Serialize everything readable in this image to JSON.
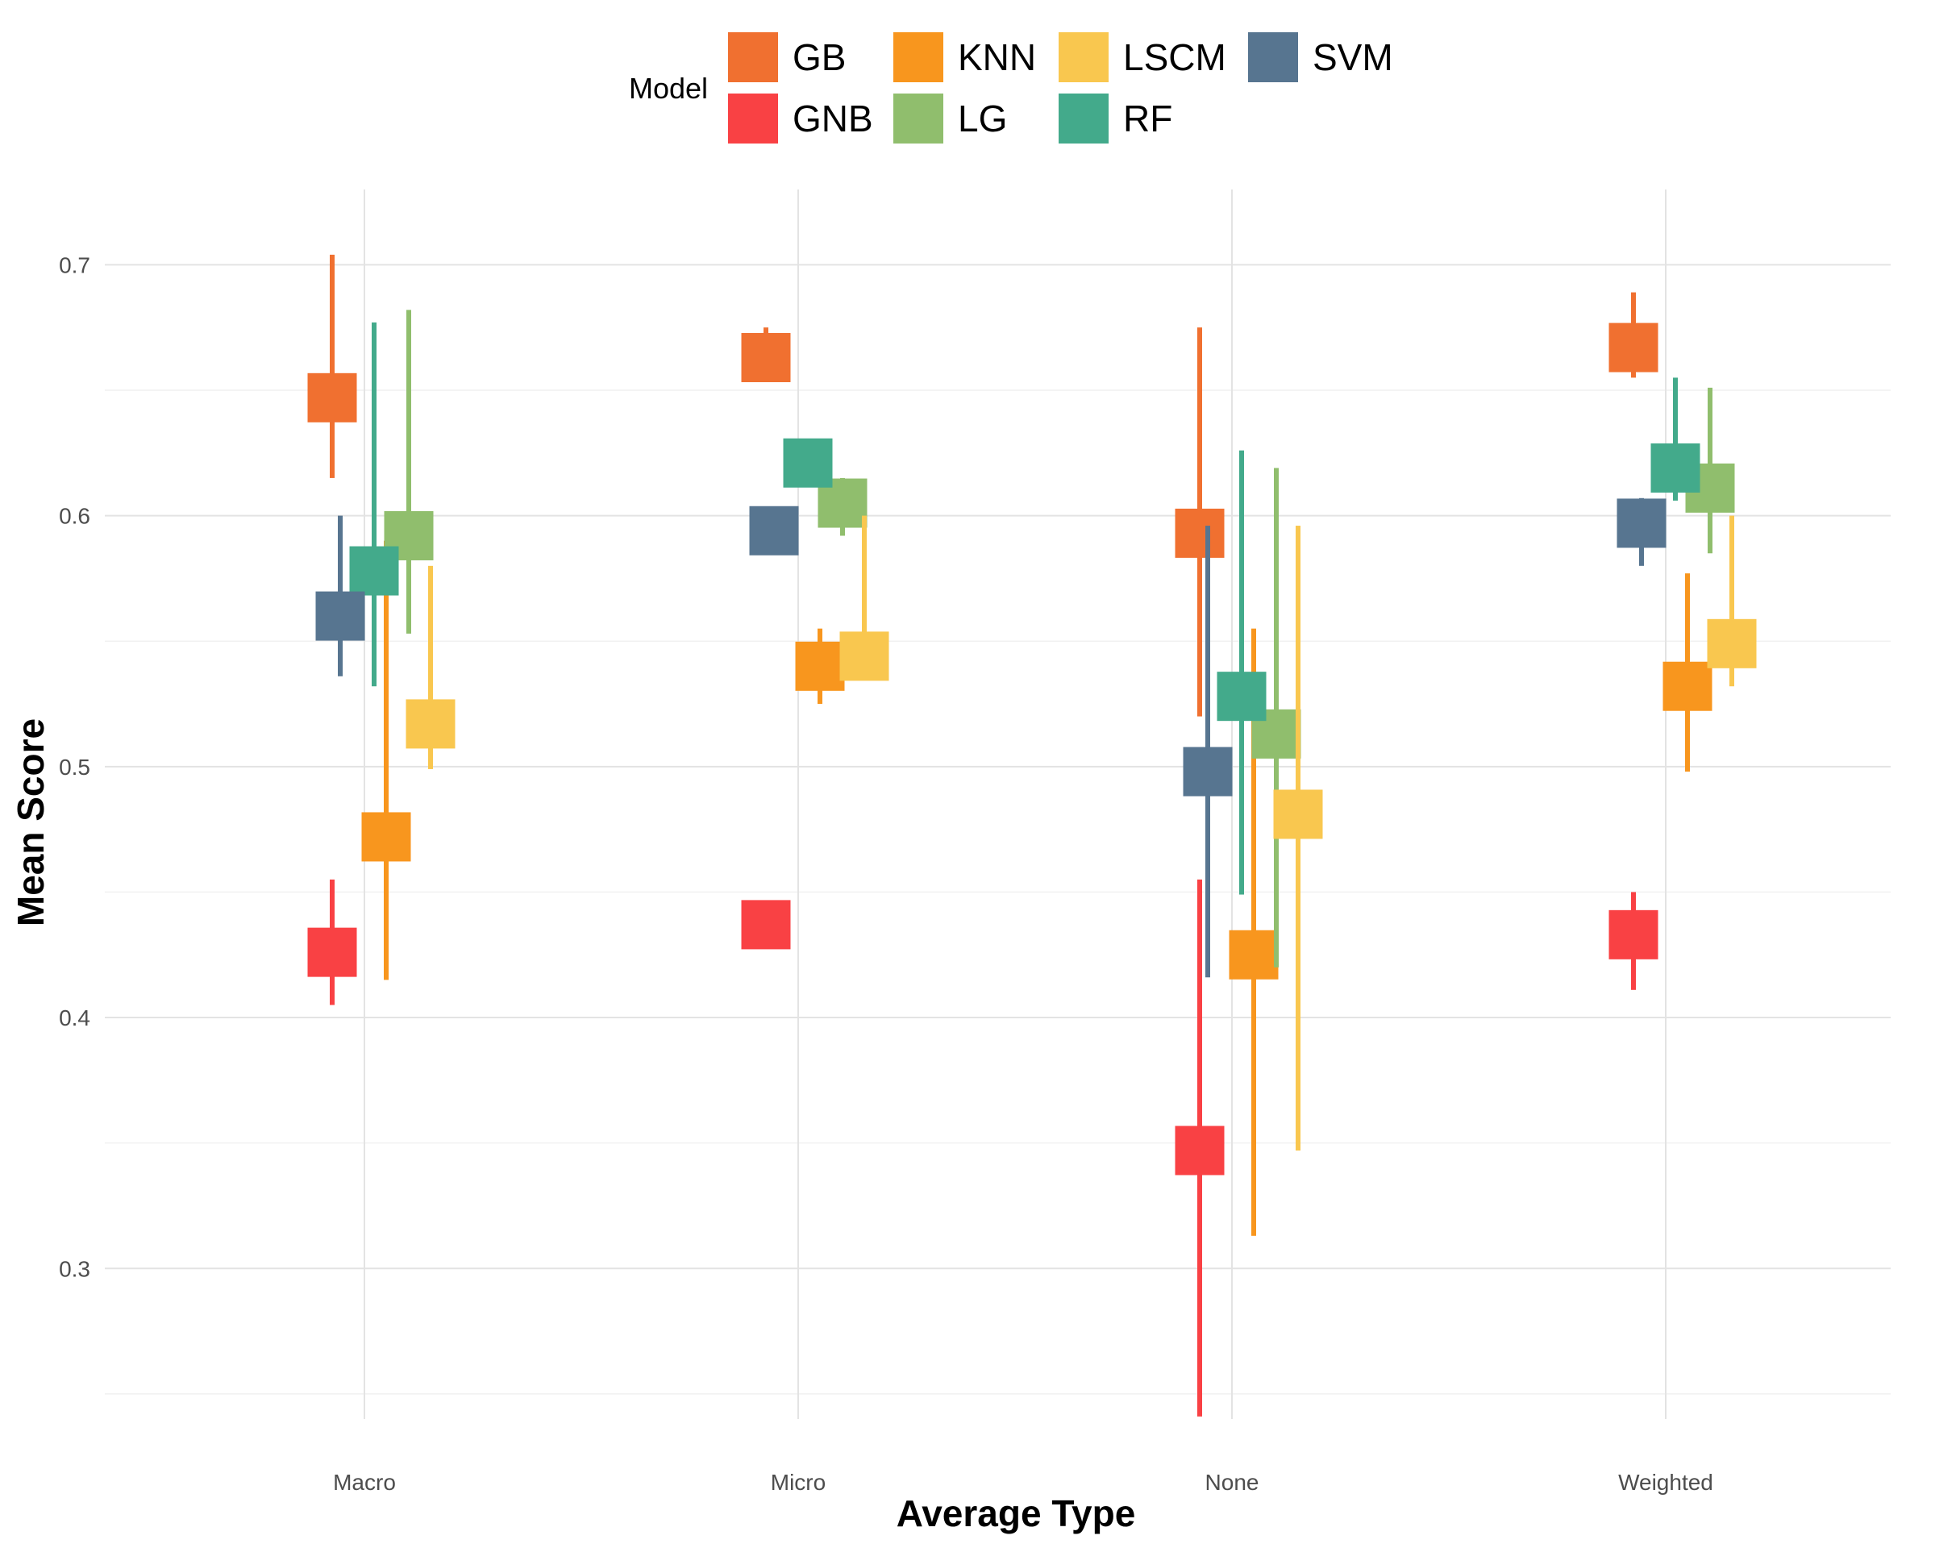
{
  "chart_data": {
    "type": "errorbar",
    "xlabel": "Average Type",
    "ylabel": "Mean Score",
    "legend_title": "Model",
    "legend_position": "top",
    "grid": true,
    "ylim": [
      0.24,
      0.73
    ],
    "yticks": [
      "0.3",
      "0.4",
      "0.5",
      "0.6",
      "0.7"
    ],
    "categories": [
      "Macro",
      "Micro",
      "None",
      "Weighted"
    ],
    "series": [
      {
        "name": "GB",
        "color": "#F07030",
        "mean": [
          0.647,
          0.663,
          0.593,
          0.667
        ],
        "lower": [
          0.615,
          0.66,
          0.52,
          0.655
        ],
        "upper": [
          0.704,
          0.675,
          0.675,
          0.689
        ]
      },
      {
        "name": "GNB",
        "color": "#F94144",
        "mean": [
          0.426,
          0.437,
          0.347,
          0.433
        ],
        "lower": [
          0.405,
          0.437,
          0.241,
          0.411
        ],
        "upper": [
          0.455,
          0.437,
          0.455,
          0.45
        ]
      },
      {
        "name": "KNN",
        "color": "#F8961E",
        "mean": [
          0.472,
          0.54,
          0.425,
          0.532
        ],
        "lower": [
          0.415,
          0.525,
          0.313,
          0.498
        ],
        "upper": [
          0.59,
          0.555,
          0.555,
          0.577
        ]
      },
      {
        "name": "LG",
        "color": "#90BE6D",
        "mean": [
          0.592,
          0.605,
          0.513,
          0.611
        ],
        "lower": [
          0.553,
          0.592,
          0.42,
          0.585
        ],
        "upper": [
          0.682,
          0.615,
          0.619,
          0.651
        ]
      },
      {
        "name": "LSCM",
        "color": "#F9C74F",
        "mean": [
          0.517,
          0.544,
          0.481,
          0.549
        ],
        "lower": [
          0.499,
          0.538,
          0.347,
          0.532
        ],
        "upper": [
          0.58,
          0.6,
          0.596,
          0.6
        ]
      },
      {
        "name": "RF",
        "color": "#43AA8B",
        "mean": [
          0.578,
          0.621,
          0.528,
          0.619
        ],
        "lower": [
          0.532,
          0.621,
          0.449,
          0.606
        ],
        "upper": [
          0.677,
          0.621,
          0.626,
          0.655
        ]
      },
      {
        "name": "SVM",
        "color": "#577590",
        "mean": [
          0.56,
          0.594,
          0.498,
          0.597
        ],
        "lower": [
          0.536,
          0.594,
          0.416,
          0.58
        ],
        "upper": [
          0.6,
          0.594,
          0.596,
          0.607
        ]
      }
    ]
  }
}
